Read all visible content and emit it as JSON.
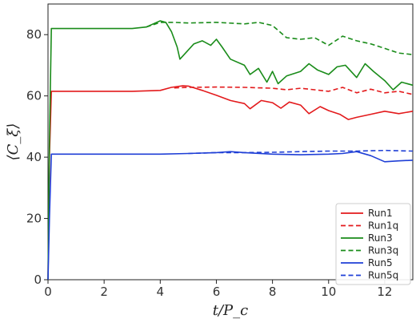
{
  "chart_data": {
    "type": "line",
    "title": "",
    "xlabel": "t/P_c",
    "ylabel": "⟨C_ξ⟩",
    "xlim": [
      0,
      13
    ],
    "ylim": [
      0,
      90
    ],
    "xticks": [
      0,
      2,
      4,
      6,
      8,
      10,
      12
    ],
    "yticks": [
      0,
      20,
      40,
      60,
      80
    ],
    "grid": false,
    "legend_position": "bottom-right",
    "series": [
      {
        "name": "Run1",
        "color": "#e31a1c",
        "style": "solid",
        "x": [
          0,
          0.05,
          0.12,
          1,
          2,
          3,
          4,
          4.4,
          4.8,
          5,
          5.5,
          6,
          6.5,
          7,
          7.2,
          7.6,
          8,
          8.3,
          8.6,
          9,
          9.3,
          9.7,
          10,
          10.4,
          10.7,
          11,
          11.5,
          12,
          12.5,
          13
        ],
        "y": [
          0,
          40,
          61.5,
          61.5,
          61.5,
          61.5,
          61.8,
          62.8,
          63.3,
          63.2,
          61.8,
          60.2,
          58.5,
          57.5,
          55.8,
          58.5,
          57.8,
          56.0,
          58.0,
          57.0,
          54.2,
          56.5,
          55.2,
          54.0,
          52.3,
          53.0,
          54.0,
          55.0,
          54.2,
          55.0
        ]
      },
      {
        "name": "Run1q",
        "color": "#e31a1c",
        "style": "dashed",
        "x": [
          4.5,
          5,
          6,
          7,
          8,
          8.5,
          9,
          10,
          10.5,
          11,
          11.5,
          12,
          12.5,
          13
        ],
        "y": [
          62.6,
          62.8,
          62.9,
          62.8,
          62.5,
          62.0,
          62.5,
          61.5,
          62.8,
          61.0,
          62.2,
          61.0,
          61.5,
          60.5
        ]
      },
      {
        "name": "Run3",
        "color": "#1a8c1a",
        "style": "solid",
        "x": [
          0,
          0.05,
          0.12,
          1,
          2,
          3,
          3.5,
          4,
          4.2,
          4.4,
          4.6,
          4.7,
          4.9,
          5.2,
          5.5,
          5.8,
          6,
          6.2,
          6.5,
          7,
          7.2,
          7.5,
          7.8,
          8,
          8.2,
          8.5,
          9,
          9.3,
          9.6,
          10,
          10.3,
          10.6,
          11,
          11.3,
          11.6,
          12,
          12.3,
          12.6,
          13
        ],
        "y": [
          0,
          45,
          82,
          82,
          82,
          82,
          82.5,
          84.5,
          84.0,
          81.0,
          76.0,
          72.0,
          74.0,
          77.0,
          78.0,
          76.5,
          78.5,
          76.0,
          72.0,
          70.0,
          67.0,
          69.0,
          64.5,
          68.0,
          64.0,
          66.5,
          68.0,
          70.5,
          68.5,
          67.0,
          69.5,
          70.0,
          66.0,
          70.5,
          68.0,
          65.0,
          62.0,
          64.5,
          63.5
        ]
      },
      {
        "name": "Run3q",
        "color": "#1a8c1a",
        "style": "dashed",
        "x": [
          3.5,
          4,
          4.5,
          5,
          6,
          7,
          7.5,
          8,
          8.5,
          9,
          9.5,
          10,
          10.5,
          11,
          11.5,
          12,
          12.5,
          13
        ],
        "y": [
          82.5,
          84.0,
          84.0,
          83.8,
          84.0,
          83.5,
          84.0,
          83.0,
          79.0,
          78.5,
          79.0,
          76.5,
          79.5,
          78.0,
          77.0,
          75.5,
          74.0,
          73.5
        ]
      },
      {
        "name": "Run5",
        "color": "#1f3fd6",
        "style": "solid",
        "x": [
          0,
          0.05,
          0.12,
          1,
          2,
          3,
          4,
          5,
          6,
          6.5,
          7,
          8,
          9,
          10,
          10.5,
          11,
          11.5,
          12,
          12.5,
          13
        ],
        "y": [
          0,
          20,
          41,
          41,
          41,
          41,
          41,
          41.2,
          41.5,
          41.8,
          41.5,
          41.0,
          40.8,
          41.0,
          41.2,
          41.8,
          40.5,
          38.5,
          38.8,
          39.0
        ]
      },
      {
        "name": "Run5q",
        "color": "#1f3fd6",
        "style": "dashed",
        "x": [
          5,
          6,
          7,
          8,
          9,
          10,
          11,
          12,
          13
        ],
        "y": [
          41.2,
          41.5,
          41.5,
          41.6,
          41.8,
          42.0,
          42.0,
          42.2,
          42.0
        ]
      }
    ]
  }
}
